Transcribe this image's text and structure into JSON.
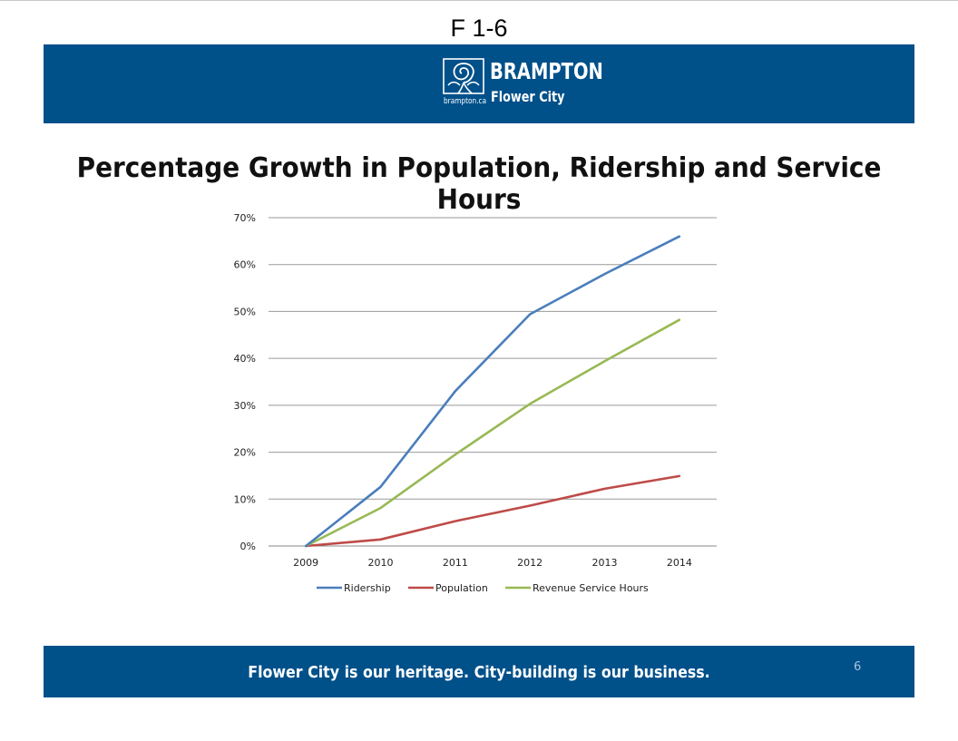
{
  "page_label": "F 1-6",
  "header": {
    "brand_name": "BRAMPTON",
    "brand_sub": "Flower City",
    "website": "brampton.ca",
    "band_color": "#00508a",
    "logo_icon": "rose-emblem-icon"
  },
  "slide_title": "Percentage Growth in Population, Ridership and Service Hours",
  "chart_data": {
    "type": "line",
    "title": "Percentage Growth in Population, Ridership and Service Hours",
    "xlabel": "",
    "ylabel": "",
    "categories": [
      "2009",
      "2010",
      "2011",
      "2012",
      "2013",
      "2014"
    ],
    "ylim": [
      0,
      70
    ],
    "y_ticks": [
      0,
      10,
      20,
      30,
      40,
      50,
      60,
      70
    ],
    "y_tick_labels": [
      "0%",
      "10%",
      "20%",
      "30%",
      "40%",
      "50%",
      "60%",
      "70%"
    ],
    "grid": true,
    "legend_position": "bottom",
    "series": [
      {
        "name": "Ridership",
        "color": "#4a7ebb",
        "values": [
          0,
          12.6,
          33,
          49.4,
          58,
          66
        ]
      },
      {
        "name": "Population",
        "color": "#be4b48",
        "values": [
          0,
          1.4,
          5.3,
          8.6,
          12.2,
          14.9
        ]
      },
      {
        "name": "Revenue Service Hours",
        "color": "#98b954",
        "values": [
          0,
          8.1,
          19.5,
          30.3,
          39.4,
          48.2
        ]
      }
    ]
  },
  "footer": {
    "tagline": "Flower City is our heritage. City-building is our business.",
    "page_number": "6"
  }
}
